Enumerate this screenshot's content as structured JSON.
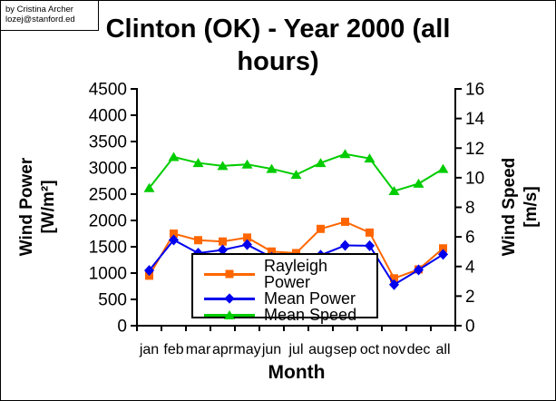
{
  "attribution": {
    "line1": "by Cristina Archer",
    "line2": "lozej@stanford.ed"
  },
  "title": {
    "line1": "Clinton (OK) - Year 2000 (all",
    "line2": "hours)"
  },
  "axis_titles": {
    "left_line1": "Wind Power",
    "left_line2": "[W/m²]",
    "right_line1": "Wind Speed",
    "right_line2": "[m/s]",
    "x": "Month"
  },
  "chart_data": {
    "type": "line",
    "title": "Clinton (OK) - Year 2000 (all hours)",
    "xlabel": "Month",
    "ylabel_left": "Wind Power [W/m²]",
    "ylabel_right": "Wind Speed [m/s]",
    "grid": false,
    "legend_position": "inside-lower-center",
    "categories": [
      "jan",
      "feb",
      "mar",
      "apr",
      "may",
      "jun",
      "jul",
      "aug",
      "sep",
      "oct",
      "nov",
      "dec",
      "all"
    ],
    "ylim_left": [
      0,
      4500
    ],
    "yticks_left": [
      0,
      500,
      1000,
      1500,
      2000,
      2500,
      3000,
      3500,
      4000,
      4500
    ],
    "ylim_right": [
      0,
      16
    ],
    "yticks_right": [
      0,
      2,
      4,
      6,
      8,
      10,
      12,
      14,
      16
    ],
    "series": [
      {
        "name": "Rayleigh Power",
        "axis": "left",
        "color": "#FF6600",
        "marker": "square",
        "values": [
          950,
          1750,
          1625,
          1600,
          1675,
          1410,
          1380,
          1840,
          1975,
          1770,
          900,
          1070,
          1470
        ]
      },
      {
        "name": "Mean Power",
        "axis": "left",
        "color": "#0000EE",
        "marker": "diamond",
        "values": [
          1050,
          1630,
          1380,
          1440,
          1540,
          1300,
          1230,
          1340,
          1525,
          1520,
          780,
          1060,
          1355
        ]
      },
      {
        "name": "Mean Speed",
        "axis": "right",
        "color": "#00CC00",
        "marker": "triangle",
        "values": [
          9.3,
          11.4,
          11.0,
          10.8,
          10.9,
          10.6,
          10.2,
          11.0,
          11.6,
          11.3,
          9.1,
          9.6,
          10.6
        ]
      }
    ]
  }
}
